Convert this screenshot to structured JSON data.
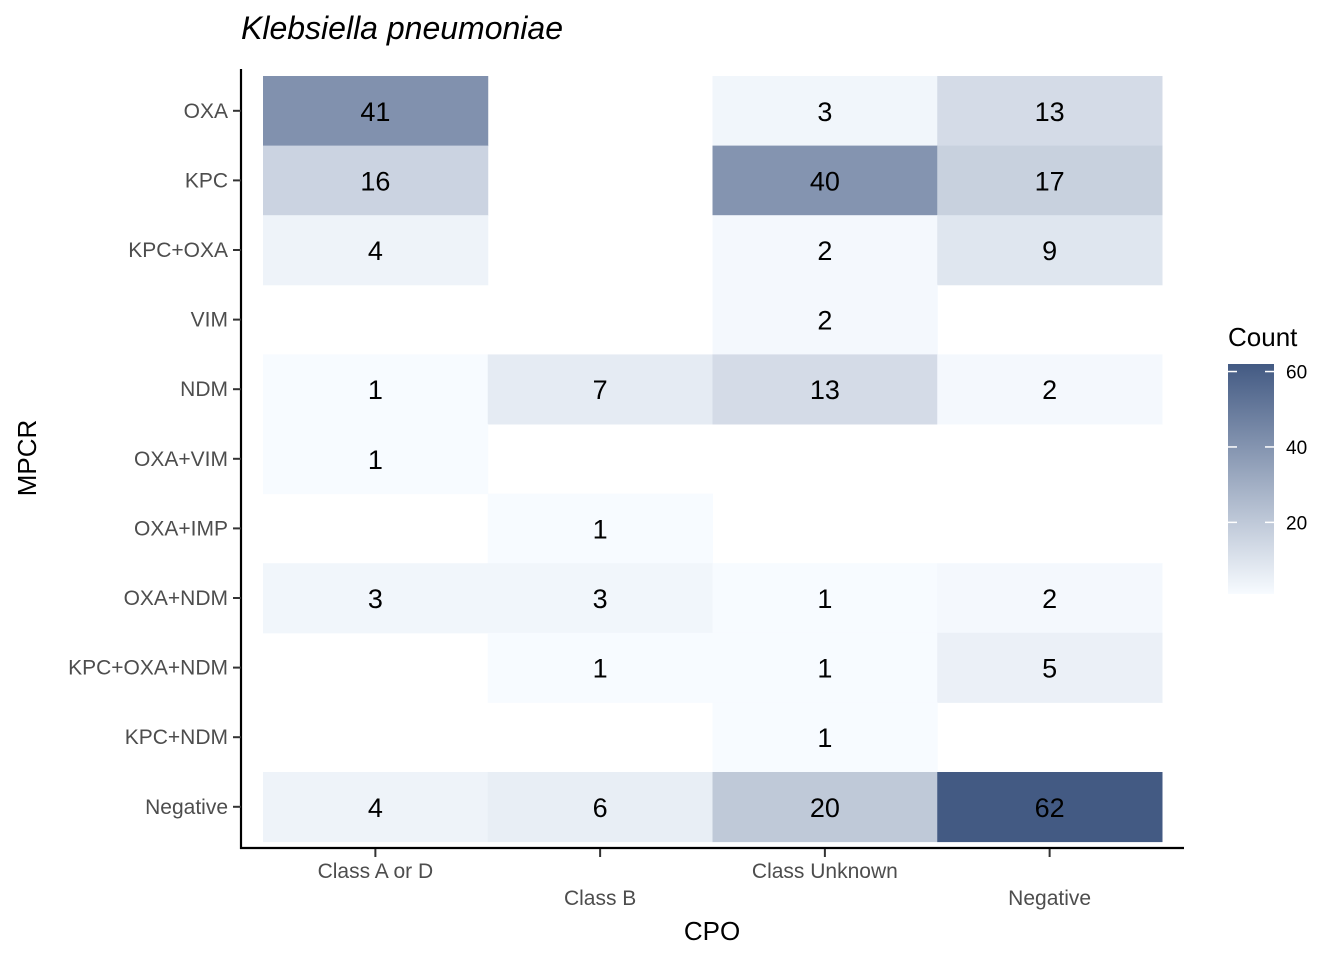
{
  "chart_data": {
    "type": "heatmap",
    "title": "Klebsiella pneumoniae",
    "xlabel": "CPO",
    "ylabel": "MPCR",
    "x_categories": [
      "Class A or D",
      "Class B",
      "Class Unknown",
      "Negative"
    ],
    "y_categories": [
      "OXA",
      "KPC",
      "KPC+OXA",
      "VIM",
      "NDM",
      "OXA+VIM",
      "OXA+IMP",
      "OXA+NDM",
      "KPC+OXA+NDM",
      "KPC+NDM",
      "Negative"
    ],
    "values": [
      [
        41,
        null,
        3,
        13
      ],
      [
        16,
        null,
        40,
        17
      ],
      [
        4,
        null,
        2,
        9
      ],
      [
        null,
        null,
        2,
        null
      ],
      [
        1,
        7,
        13,
        2
      ],
      [
        1,
        null,
        null,
        null
      ],
      [
        null,
        1,
        null,
        null
      ],
      [
        3,
        3,
        1,
        2
      ],
      [
        null,
        1,
        1,
        5
      ],
      [
        null,
        null,
        1,
        null
      ],
      [
        4,
        6,
        20,
        62
      ]
    ],
    "legend": {
      "title": "Count",
      "ticks": [
        20,
        40,
        60
      ],
      "range": [
        1,
        62
      ],
      "low_color": "#f7fbff",
      "high_color": "#435a83",
      "position": "right"
    },
    "grid": false
  }
}
